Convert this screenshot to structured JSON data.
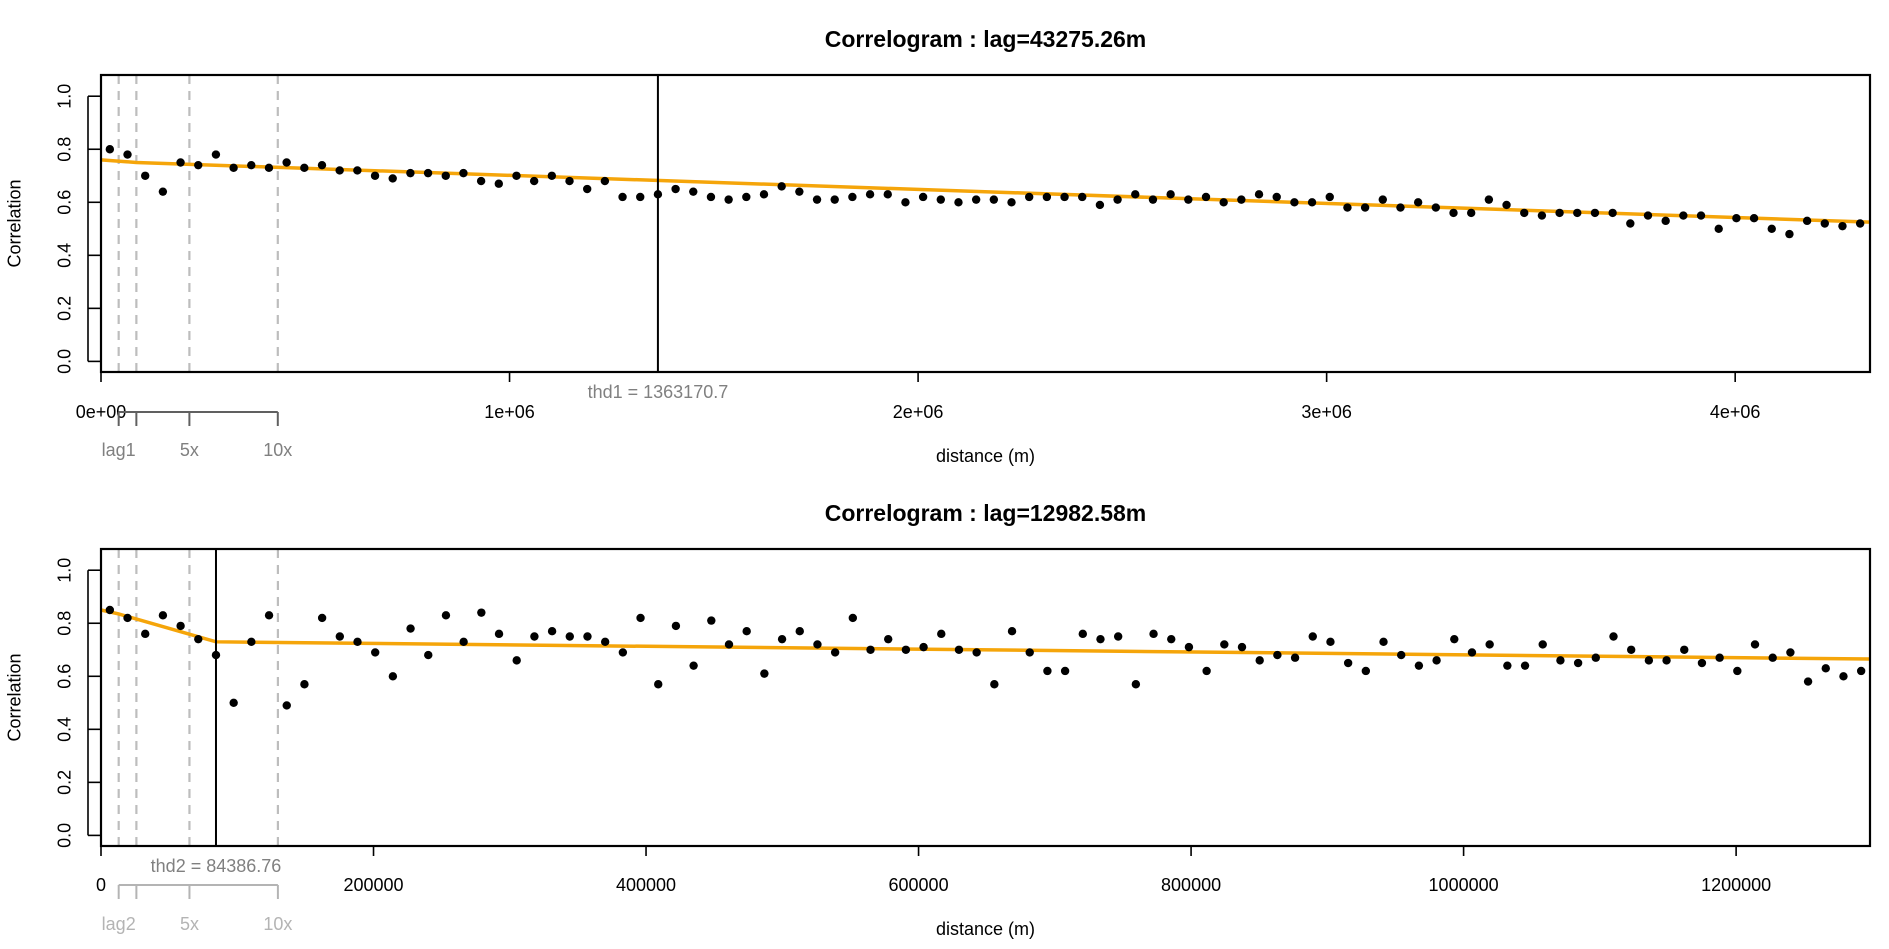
{
  "colors": {
    "fit_line": "#f5a50a",
    "points": "#000000",
    "marker_lines": "#bdbdbd",
    "threshold_line": "#000000"
  },
  "chart_data": [
    {
      "type": "scatter",
      "title": "Correlogram : lag=43275.26m",
      "xlabel": "distance (m)",
      "ylabel": "Correlation",
      "xlim": [
        0,
        4330000
      ],
      "ylim": [
        -0.04,
        1.08
      ],
      "x_ticks": [
        0,
        1000000,
        2000000,
        3000000,
        4000000
      ],
      "x_tick_labels": [
        "0e+00",
        "1e+06",
        "2e+06",
        "3e+06",
        "4e+06"
      ],
      "y_ticks": [
        0,
        0.2,
        0.4,
        0.6,
        0.8,
        1
      ],
      "y_tick_labels": [
        "0.0",
        "0.2",
        "0.4",
        "0.6",
        "0.8",
        "1.0"
      ],
      "grid": false,
      "lag": 43275.26,
      "markers": [
        {
          "x": 43275.26,
          "label": "lag1"
        },
        {
          "x": 86550.52,
          "label": ""
        },
        {
          "x": 216376.3,
          "label": "5x"
        },
        {
          "x": 432752.6,
          "label": "10x"
        }
      ],
      "threshold": {
        "x": 1363170.7,
        "label": "thd1 = 1363170.7"
      },
      "fit_line": {
        "x": [
          0,
          86550.52,
          4330000
        ],
        "y": [
          0.76,
          0.75,
          0.525
        ]
      },
      "points": {
        "x": [
          21637.63,
          64912.89,
          108188.15,
          151463.41,
          194738.67,
          238013.93,
          281289.19,
          324564.45,
          367839.71,
          411114.97,
          454390.23,
          497665.49,
          540940.75,
          584216.01,
          627491.27,
          670766.53,
          714041.79,
          757317.05,
          800592.31,
          843867.57,
          887142.83,
          930418.09,
          973693.35,
          1016968.61,
          1060243.87,
          1103519.13,
          1146794.39,
          1190069.65,
          1233344.91,
          1276620.17,
          1319895.43,
          1363170.69,
          1406445.95,
          1449721.21,
          1492996.47,
          1536271.73,
          1579546.99,
          1622822.25,
          1666097.51,
          1709372.77,
          1752648.03,
          1795923.29,
          1839198.55,
          1882473.81,
          1925749.07,
          1969024.33,
          2012299.59,
          2055574.85,
          2098850.11,
          2142125.37,
          2185400.63,
          2228675.89,
          2271951.15,
          2315226.41,
          2358501.67,
          2401776.93,
          2445052.19,
          2488327.45,
          2531602.71,
          2574877.97,
          2618153.23,
          2661428.49,
          2704703.75,
          2747979.01,
          2791254.27,
          2834529.53,
          2877804.79,
          2921080.05,
          2964355.31,
          3007630.57,
          3050905.83,
          3094181.09,
          3137456.35,
          3180731.61,
          3224006.87,
          3267282.13,
          3310557.39,
          3353832.65,
          3397107.91,
          3440383.17,
          3483658.43,
          3526933.69,
          3570208.95,
          3613484.21,
          3656759.47,
          3700034.73,
          3743309.99,
          3786585.25,
          3829860.51,
          3873135.77,
          3916411.03,
          3959686.29,
          4002961.55,
          4046236.81,
          4089512.07,
          4132787.33,
          4176062.59,
          4219337.85,
          4262613.11,
          4305888.37
        ],
        "y": [
          0.8,
          0.78,
          0.7,
          0.64,
          0.75,
          0.74,
          0.78,
          0.73,
          0.74,
          0.73,
          0.75,
          0.73,
          0.74,
          0.72,
          0.72,
          0.7,
          0.69,
          0.71,
          0.71,
          0.7,
          0.71,
          0.68,
          0.67,
          0.7,
          0.68,
          0.7,
          0.68,
          0.65,
          0.68,
          0.62,
          0.62,
          0.63,
          0.65,
          0.64,
          0.62,
          0.61,
          0.62,
          0.63,
          0.66,
          0.64,
          0.61,
          0.61,
          0.62,
          0.63,
          0.63,
          0.6,
          0.62,
          0.61,
          0.6,
          0.61,
          0.61,
          0.6,
          0.62,
          0.62,
          0.62,
          0.62,
          0.59,
          0.61,
          0.63,
          0.61,
          0.63,
          0.61,
          0.62,
          0.6,
          0.61,
          0.63,
          0.62,
          0.6,
          0.6,
          0.62,
          0.58,
          0.58,
          0.61,
          0.58,
          0.6,
          0.58,
          0.56,
          0.56,
          0.61,
          0.59,
          0.56,
          0.55,
          0.56,
          0.56,
          0.56,
          0.56,
          0.52,
          0.55,
          0.53,
          0.55,
          0.55,
          0.5,
          0.54,
          0.54,
          0.5,
          0.48,
          0.53,
          0.52,
          0.51,
          0.52
        ]
      }
    },
    {
      "type": "scatter",
      "title": "Correlogram : lag=12982.58m",
      "xlabel": "distance (m)",
      "ylabel": "Correlation",
      "xlim": [
        0,
        1298258
      ],
      "ylim": [
        -0.04,
        1.08
      ],
      "x_ticks": [
        0,
        200000,
        400000,
        600000,
        800000,
        1000000,
        1200000
      ],
      "x_tick_labels": [
        "0",
        "200000",
        "400000",
        "600000",
        "800000",
        "1000000",
        "1200000"
      ],
      "y_ticks": [
        0,
        0.2,
        0.4,
        0.6,
        0.8,
        1
      ],
      "y_tick_labels": [
        "0.0",
        "0.2",
        "0.4",
        "0.6",
        "0.8",
        "1.0"
      ],
      "grid": false,
      "lag": 12982.58,
      "markers": [
        {
          "x": 12982.58,
          "label": "lag2"
        },
        {
          "x": 25965.16,
          "label": ""
        },
        {
          "x": 64912.9,
          "label": "5x"
        },
        {
          "x": 129825.8,
          "label": "10x"
        }
      ],
      "threshold": {
        "x": 84386.76,
        "label": "thd2 = 84386.76"
      },
      "fit_line": {
        "x": [
          0,
          12982.58,
          84386.76,
          1298258
        ],
        "y": [
          0.85,
          0.835,
          0.73,
          0.665
        ]
      },
      "points": {
        "x": [
          6491.29,
          19473.87,
          32456.45,
          45439.03,
          58421.61,
          71404.19,
          84386.77,
          97369.35,
          110351.93,
          123334.51,
          136317.09,
          149299.67,
          162282.25,
          175264.83,
          188247.41,
          201229.99,
          214212.57,
          227195.15,
          240177.73,
          253160.31,
          266142.89,
          279125.47,
          292108.05,
          305090.63,
          318073.21,
          331055.79,
          344038.37,
          357020.95,
          370003.53,
          382986.11,
          395968.69,
          408951.27,
          421933.85,
          434916.43,
          447899.01,
          460881.59,
          473864.17,
          486846.75,
          499829.33,
          512811.91,
          525794.49,
          538777.07,
          551759.65,
          564742.23,
          577724.81,
          590707.39,
          603689.97,
          616672.55,
          629655.13,
          642637.71,
          655620.29,
          668602.87,
          681585.45,
          694568.03,
          707550.61,
          720533.19,
          733515.77,
          746498.35,
          759480.93,
          772463.51,
          785446.09,
          798428.67,
          811411.25,
          824393.83,
          837376.41,
          850358.99,
          863341.57,
          876324.15,
          889306.73,
          902289.31,
          915271.89,
          928254.47,
          941237.05,
          954219.63,
          967202.21,
          980184.79,
          993167.37,
          1006149.95,
          1019132.53,
          1032115.11,
          1045097.69,
          1058080.27,
          1071062.85,
          1084045.43,
          1097028.01,
          1110010.59,
          1122993.17,
          1135975.75,
          1148958.33,
          1161940.91,
          1174923.49,
          1187906.07,
          1200888.65,
          1213871.23,
          1226853.81,
          1239836.39,
          1252818.97,
          1265801.55,
          1278784.13,
          1291766.71
        ],
        "y": [
          0.85,
          0.82,
          0.76,
          0.83,
          0.79,
          0.74,
          0.68,
          0.5,
          0.73,
          0.83,
          0.49,
          0.57,
          0.82,
          0.75,
          0.73,
          0.69,
          0.6,
          0.78,
          0.68,
          0.83,
          0.73,
          0.84,
          0.76,
          0.66,
          0.75,
          0.77,
          0.75,
          0.75,
          0.73,
          0.69,
          0.82,
          0.57,
          0.79,
          0.64,
          0.81,
          0.72,
          0.77,
          0.61,
          0.74,
          0.77,
          0.72,
          0.69,
          0.82,
          0.7,
          0.74,
          0.7,
          0.71,
          0.76,
          0.7,
          0.69,
          0.57,
          0.77,
          0.69,
          0.62,
          0.62,
          0.76,
          0.74,
          0.75,
          0.57,
          0.76,
          0.74,
          0.71,
          0.62,
          0.72,
          0.71,
          0.66,
          0.68,
          0.67,
          0.75,
          0.73,
          0.65,
          0.62,
          0.73,
          0.68,
          0.64,
          0.66,
          0.74,
          0.69,
          0.72,
          0.64,
          0.64,
          0.72,
          0.66,
          0.65,
          0.67,
          0.75,
          0.7,
          0.66,
          0.66,
          0.7,
          0.65,
          0.67,
          0.62,
          0.72,
          0.67,
          0.69,
          0.58,
          0.63,
          0.6,
          0.62
        ]
      }
    }
  ]
}
